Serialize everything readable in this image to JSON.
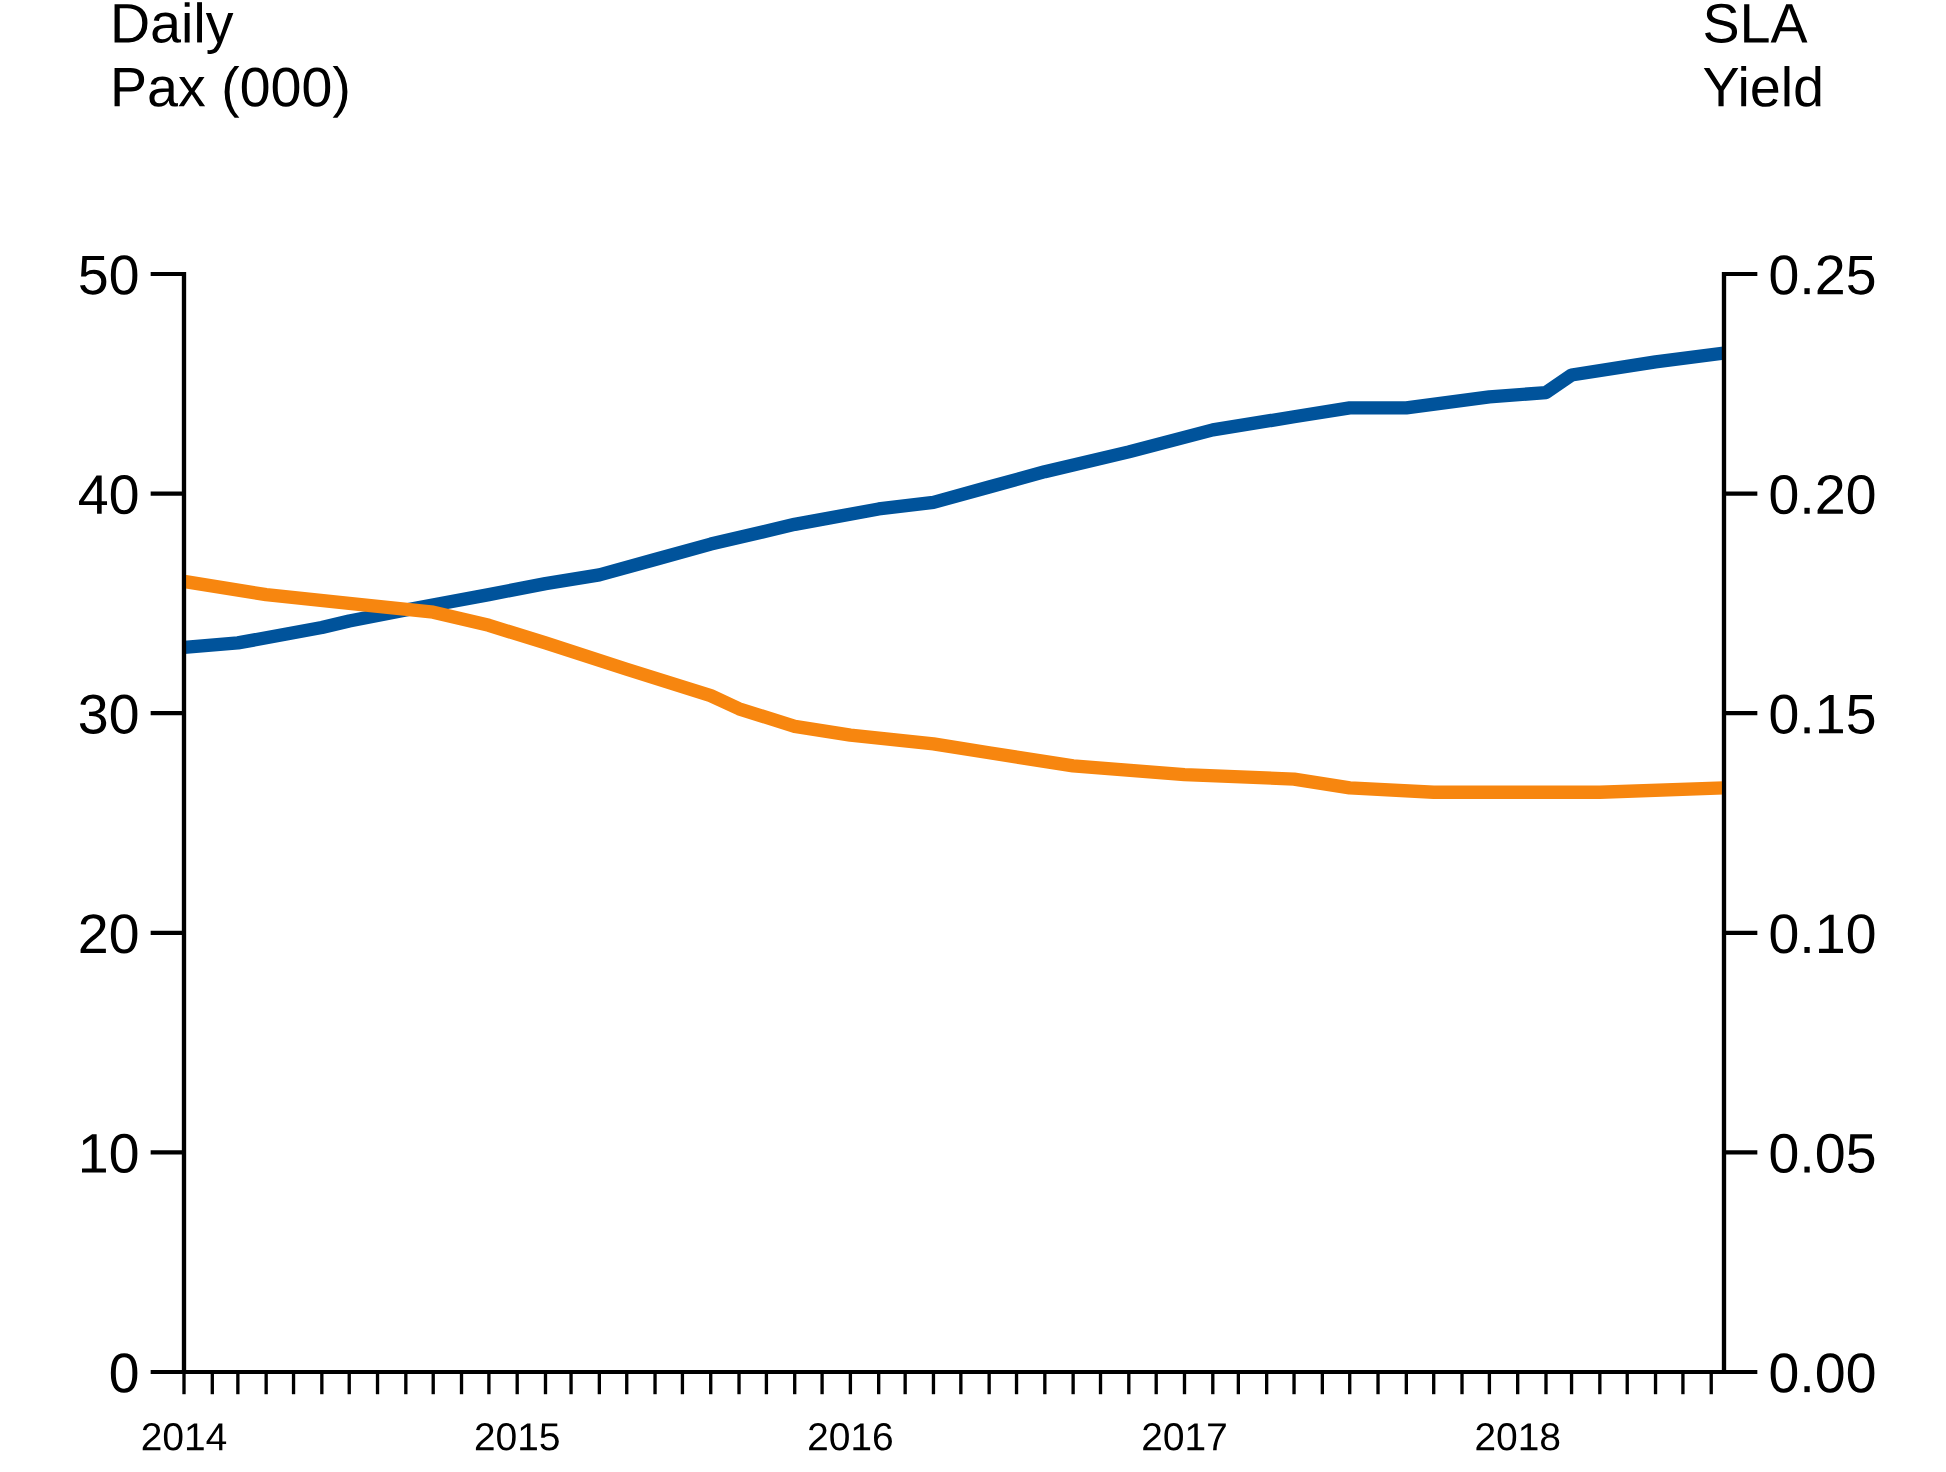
{
  "chart_data": {
    "type": "line",
    "ylabel": "Daily\nPax (000)",
    "y2label": "SLA\nYield",
    "xlim": [
      "2014-01",
      "2018-08-15"
    ],
    "xticks": [
      {
        "value": "2014-01",
        "label": "2014"
      },
      {
        "value": "2014-02",
        "label": null
      },
      {
        "value": "2014-03",
        "label": null
      },
      {
        "value": "2014-04",
        "label": null
      },
      {
        "value": "2014-05",
        "label": null
      },
      {
        "value": "2014-06",
        "label": null
      },
      {
        "value": "2014-07",
        "label": null
      },
      {
        "value": "2014-08",
        "label": null
      },
      {
        "value": "2014-09",
        "label": null
      },
      {
        "value": "2014-10",
        "label": null
      },
      {
        "value": "2014-11",
        "label": null
      },
      {
        "value": "2014-12",
        "label": null
      },
      {
        "value": "2015-01",
        "label": "2015"
      },
      {
        "value": "2015-02",
        "label": null
      },
      {
        "value": "2015-03",
        "label": null
      },
      {
        "value": "2015-04",
        "label": null
      },
      {
        "value": "2015-05",
        "label": null
      },
      {
        "value": "2015-06",
        "label": null
      },
      {
        "value": "2015-07",
        "label": null
      },
      {
        "value": "2015-08",
        "label": null
      },
      {
        "value": "2015-09",
        "label": null
      },
      {
        "value": "2015-10",
        "label": null
      },
      {
        "value": "2015-11",
        "label": null
      },
      {
        "value": "2015-12",
        "label": null
      },
      {
        "value": "2016-01",
        "label": "2016"
      },
      {
        "value": "2016-02",
        "label": null
      },
      {
        "value": "2016-03",
        "label": null
      },
      {
        "value": "2016-04",
        "label": null
      },
      {
        "value": "2016-05",
        "label": null
      },
      {
        "value": "2016-06",
        "label": null
      },
      {
        "value": "2016-07",
        "label": null
      },
      {
        "value": "2016-08",
        "label": null
      },
      {
        "value": "2016-09",
        "label": null
      },
      {
        "value": "2016-10",
        "label": null
      },
      {
        "value": "2016-11",
        "label": null
      },
      {
        "value": "2016-12",
        "label": null
      },
      {
        "value": "2017-01",
        "label": "2017"
      },
      {
        "value": "2017-02",
        "label": null
      },
      {
        "value": "2017-03",
        "label": null
      },
      {
        "value": "2017-04",
        "label": null
      },
      {
        "value": "2017-05",
        "label": null
      },
      {
        "value": "2017-06",
        "label": null
      },
      {
        "value": "2017-07",
        "label": null
      },
      {
        "value": "2017-08",
        "label": null
      },
      {
        "value": "2017-09",
        "label": null
      },
      {
        "value": "2017-10",
        "label": null
      },
      {
        "value": "2017-11",
        "label": null
      },
      {
        "value": "2017-12",
        "label": null
      },
      {
        "value": "2018-01",
        "label": "2018"
      },
      {
        "value": "2018-02",
        "label": null
      },
      {
        "value": "2018-03",
        "label": null
      },
      {
        "value": "2018-04",
        "label": null
      },
      {
        "value": "2018-05",
        "label": null
      },
      {
        "value": "2018-06",
        "label": null
      },
      {
        "value": "2018-07",
        "label": null
      },
      {
        "value": "2018-08",
        "label": null
      }
    ],
    "ylim": [
      0,
      50
    ],
    "yticks": [
      0,
      10,
      20,
      30,
      40,
      50
    ],
    "y2lim": [
      0,
      0.25
    ],
    "y2ticks": [
      {
        "value": 0,
        "label": "0.00"
      },
      {
        "value": 0.05,
        "label": "0.05"
      },
      {
        "value": 0.1,
        "label": "0.10"
      },
      {
        "value": 0.15,
        "label": "0.15"
      },
      {
        "value": 0.2,
        "label": "0.20"
      },
      {
        "value": 0.25,
        "label": "0.25"
      }
    ],
    "marker": "none",
    "line_style": "solid",
    "series": [
      {
        "color": "#00539b",
        "x": [
          "2014-01",
          "2014-03",
          "2014-06",
          "2014-07",
          "2014-09",
          "2014-12",
          "2015-02",
          "2015-04",
          "2015-06",
          "2015-08",
          "2015-11",
          "2016-02",
          "2016-04",
          "2016-06",
          "2016-08",
          "2016-11",
          "2017-02",
          "2017-05",
          "2017-07",
          "2017-09",
          "2017-12",
          "2018-02",
          "2018-03",
          "2018-06",
          "2018-08-15"
        ],
        "values": [
          33.0,
          33.2,
          33.9,
          34.2,
          34.7,
          35.4,
          35.9,
          36.3,
          37.0,
          37.7,
          38.6,
          39.3,
          39.6,
          40.3,
          41.0,
          41.9,
          42.9,
          43.5,
          43.9,
          43.9,
          44.4,
          44.6,
          45.4,
          46.0,
          46.4
        ]
      },
      {
        "color": "#f7860f",
        "axis": "y2",
        "x": [
          "2014-01",
          "2014-04",
          "2014-07",
          "2014-10",
          "2014-12",
          "2015-02",
          "2015-05",
          "2015-08",
          "2015-09",
          "2015-11",
          "2016-01",
          "2016-04",
          "2016-06",
          "2016-09",
          "2017-01",
          "2017-05",
          "2017-07",
          "2017-10",
          "2018-02",
          "2018-04",
          "2018-08-15"
        ],
        "values": [
          0.18,
          0.177,
          0.175,
          0.173,
          0.17,
          0.166,
          0.16,
          0.154,
          0.151,
          0.147,
          0.145,
          0.143,
          0.141,
          0.138,
          0.136,
          0.135,
          0.133,
          0.132,
          0.132,
          0.132,
          0.133
        ]
      }
    ]
  }
}
